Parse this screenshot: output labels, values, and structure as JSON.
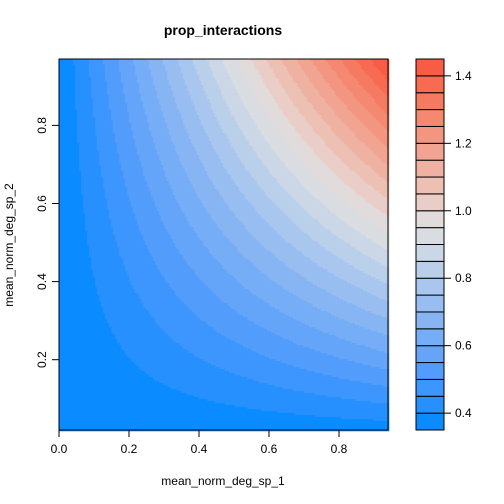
{
  "chart_data": {
    "type": "heatmap",
    "subtype": "filled-contour",
    "title": "prop_interactions",
    "xlabel": "mean_norm_deg_sp_1",
    "ylabel": "mean_norm_deg_sp_2",
    "xlim": [
      0.0,
      0.94
    ],
    "ylim": [
      0.02,
      0.97
    ],
    "xticks": [
      "0.0",
      "0.2",
      "0.4",
      "0.6",
      "0.8"
    ],
    "yticks": [
      "0.2",
      "0.4",
      "0.6",
      "0.8"
    ],
    "z_range": [
      0.35,
      1.45
    ],
    "z_surface_estimate": {
      "base": 0.35,
      "coef_xy": 1.22
    },
    "colorbar": {
      "ticks": [
        "0.4",
        "0.6",
        "0.8",
        "1.0",
        "1.2",
        "1.4"
      ],
      "levels": [
        0.35,
        0.4,
        0.45,
        0.5,
        0.55,
        0.6,
        0.65,
        0.7,
        0.75,
        0.8,
        0.85,
        0.9,
        0.95,
        1.0,
        1.05,
        1.1,
        1.15,
        1.2,
        1.25,
        1.3,
        1.35,
        1.4,
        1.45
      ],
      "colors": [
        "#0a8bff",
        "#2690ff",
        "#3d96fd",
        "#529dfb",
        "#64a5f9",
        "#75adf7",
        "#87b5f4",
        "#98bdf1",
        "#a9c6ee",
        "#bacfea",
        "#cbd7e6",
        "#d9dde2",
        "#e1dbdb",
        "#e9cdc6",
        "#edc0b4",
        "#efb2a2",
        "#f1a491",
        "#f39681",
        "#f48871",
        "#f57a62",
        "#f76b53",
        "#f85c45"
      ]
    },
    "grid": false,
    "legend": "colorbar-right"
  }
}
